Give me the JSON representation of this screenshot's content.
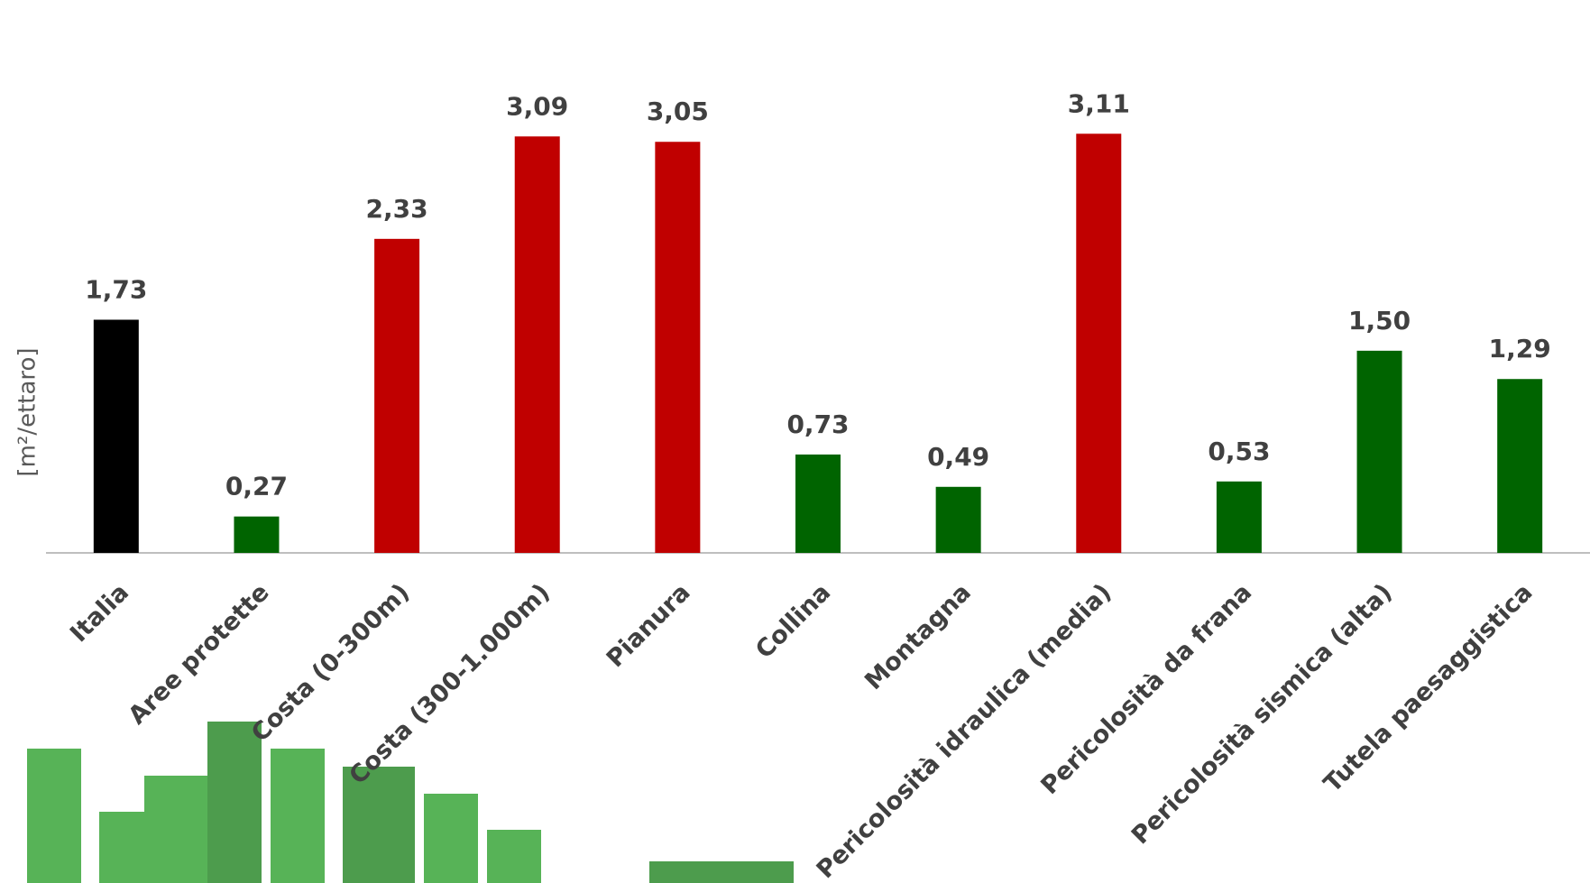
{
  "chart_data": {
    "type": "bar",
    "y_label": "[m²/ettaro]",
    "categories": [
      "Italia",
      "Aree protette",
      "Costa (0-300m)",
      "Costa (300-1.000m)",
      "Pianura",
      "Collina",
      "Montagna",
      "Pericolosità idraulica (media)",
      "Pericolosità da frana",
      "Pericolosità sismica (alta)",
      "Tutela paesaggistica"
    ],
    "values": [
      1.73,
      0.27,
      2.33,
      3.09,
      3.05,
      0.73,
      0.49,
      3.11,
      0.53,
      1.5,
      1.29
    ],
    "value_labels": [
      "1,73",
      "0,27",
      "2,33",
      "3,09",
      "3,05",
      "0,73",
      "0,49",
      "3,11",
      "0,53",
      "1,50",
      "1,29"
    ],
    "colors": [
      "#000000",
      "#006400",
      "#c00000",
      "#c00000",
      "#c00000",
      "#006400",
      "#006400",
      "#c00000",
      "#006400",
      "#006400",
      "#006400"
    ],
    "ylim": [
      0,
      3.5
    ]
  }
}
